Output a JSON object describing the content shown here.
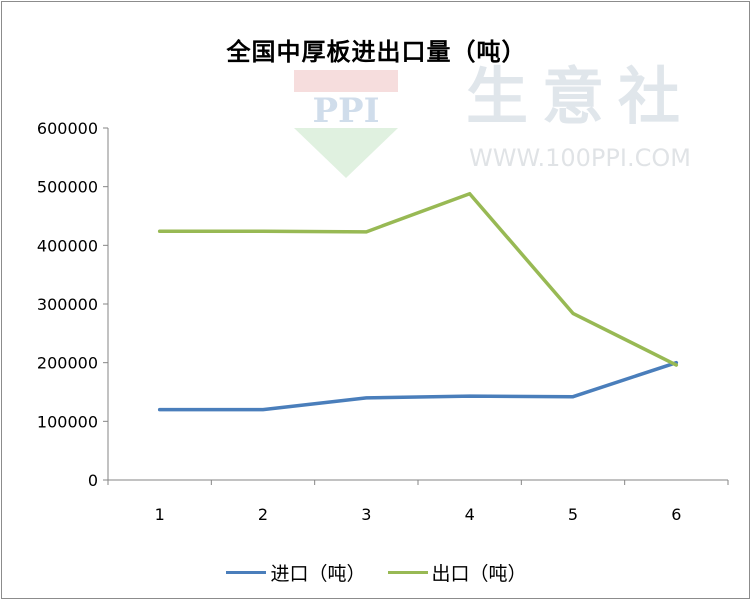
{
  "chart_data": {
    "type": "line",
    "title": "全国中厚板进出口量（吨）",
    "xlabel": "",
    "ylabel": "",
    "categories": [
      "1",
      "2",
      "3",
      "4",
      "5",
      "6"
    ],
    "ylim": [
      0,
      600000
    ],
    "yticks": [
      "0",
      "100000",
      "200000",
      "300000",
      "400000",
      "500000",
      "600000"
    ],
    "grid": false,
    "legend_position": "bottom",
    "series": [
      {
        "name": "进口（吨）",
        "color": "#4a7ebb",
        "values": [
          120000,
          120000,
          140000,
          143000,
          142000,
          200000
        ]
      },
      {
        "name": "出口（吨）",
        "color": "#98b954",
        "values": [
          424000,
          424000,
          423000,
          488000,
          284000,
          196000
        ]
      }
    ]
  },
  "watermark": {
    "logo_text": "PPI",
    "brand": "生意社",
    "url": "WWW.100PPI.COM"
  }
}
